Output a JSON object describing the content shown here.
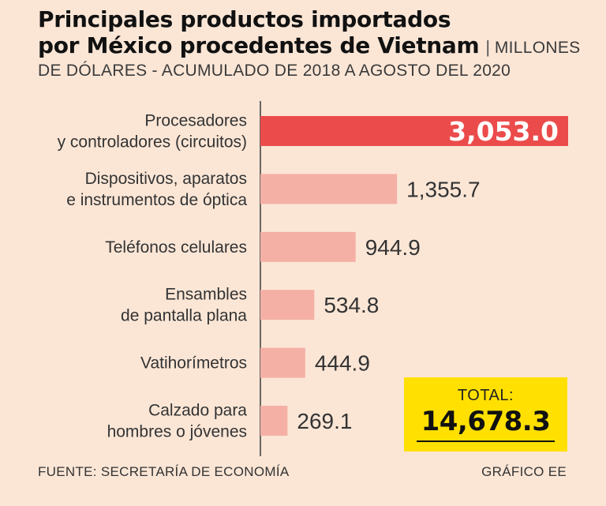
{
  "header": {
    "title_line1": "Principales productos importados",
    "title_line2": "por México procedentes de Vietnam",
    "separator": "|",
    "subtitle_part1": "MILLONES",
    "subtitle_part2": "DE DÓLARES - ACUMULADO DE 2018 A AGOSTO DEL 2020"
  },
  "colors": {
    "background": "#fbe6d6",
    "highlight_bar": "#ec4b4b",
    "bar": "#f5b0a5",
    "axis": "#3a3a3a",
    "total_box": "#ffe000"
  },
  "chart_data": {
    "type": "bar",
    "orientation": "horizontal",
    "title": "Principales productos importados por México procedentes de Vietnam",
    "units": "MILLONES DE DÓLARES - ACUMULADO DE 2018 A AGOSTO DEL 2020",
    "categories": [
      [
        "Procesadores",
        "y controladores (circuitos)"
      ],
      [
        "Dispositivos, aparatos",
        "e instrumentos de óptica"
      ],
      [
        "Teléfonos celulares"
      ],
      [
        "Ensambles",
        "de pantalla plana"
      ],
      [
        "Vatihorímetros"
      ],
      [
        "Calzado para",
        "hombres o jóvenes"
      ]
    ],
    "values": [
      3053.0,
      1355.7,
      944.9,
      534.8,
      444.9,
      269.1
    ],
    "value_labels": [
      "3,053.0",
      "1,355.7",
      "944.9",
      "534.8",
      "444.9",
      "269.1"
    ],
    "highlight_index": 0,
    "xlim": [
      0,
      3053.0
    ]
  },
  "total": {
    "label": "TOTAL:",
    "value": "14,678.3"
  },
  "footer": {
    "source": "FUENTE: SECRETARÍA DE ECONOMÍA",
    "credit": "GRÁFICO EE"
  }
}
